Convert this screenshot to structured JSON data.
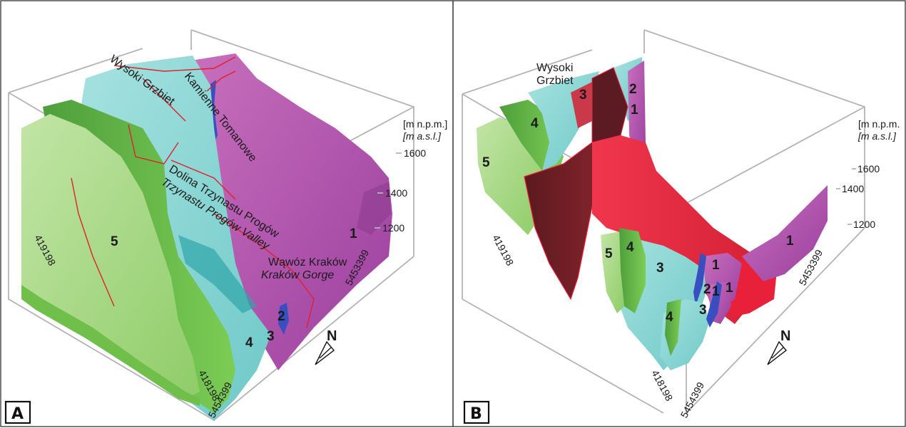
{
  "panels": [
    {
      "letter": "A",
      "place_names": {
        "wysoki_grzbiet": "Wysoki Grzbiet",
        "kamienne_tomanowe": "Kamienne Tomanowe",
        "dolina_pl": "Dolina Trzynastu Progów",
        "dolina_en": "Trzynastu Progów Valley",
        "wawoz_pl": "Wąwóz Kraków",
        "wawoz_en": "Kraków Gorge"
      },
      "unit_label_pl": "[m n.p.m.]",
      "unit_label_en": "[m a.s.l.]",
      "elevation_ticks": [
        "1600",
        "1400",
        "1200"
      ],
      "easting_near": "419198",
      "easting_far": "418198",
      "northing_near": "5453399",
      "northing_far": "5454399",
      "unit_numbers": [
        "5",
        "4",
        "3",
        "2",
        "1"
      ],
      "north_label": "N"
    },
    {
      "letter": "B",
      "place_names": {
        "wysoki_1": "Wysoki",
        "wysoki_2": "Grzbiet"
      },
      "unit_label_pl": "[m n.p.m.",
      "unit_label_en": "[m a.s.l.]",
      "elevation_ticks": [
        "1600",
        "1400",
        "1200"
      ],
      "easting_near": "419198",
      "easting_far": "418198",
      "northing_near": "5453399",
      "northing_far": "5454399",
      "unit_numbers": [
        "3",
        "2",
        "1",
        "4",
        "5",
        "5",
        "4",
        "3",
        "1",
        "1",
        "2",
        "1",
        "3",
        "4",
        "1"
      ],
      "north_label": "N"
    }
  ],
  "colors": {
    "unit1": "#c163b5",
    "unit1_dark": "#8a3a8e",
    "unit2": "#3a4fbf",
    "unit3": "#8fd8d6",
    "unit3_dark": "#2fa5a8",
    "unit4": "#6fbf4a",
    "unit5": "#a6d88a",
    "fault_red": "#e8203a",
    "fault_dark": "#6b1a22"
  }
}
